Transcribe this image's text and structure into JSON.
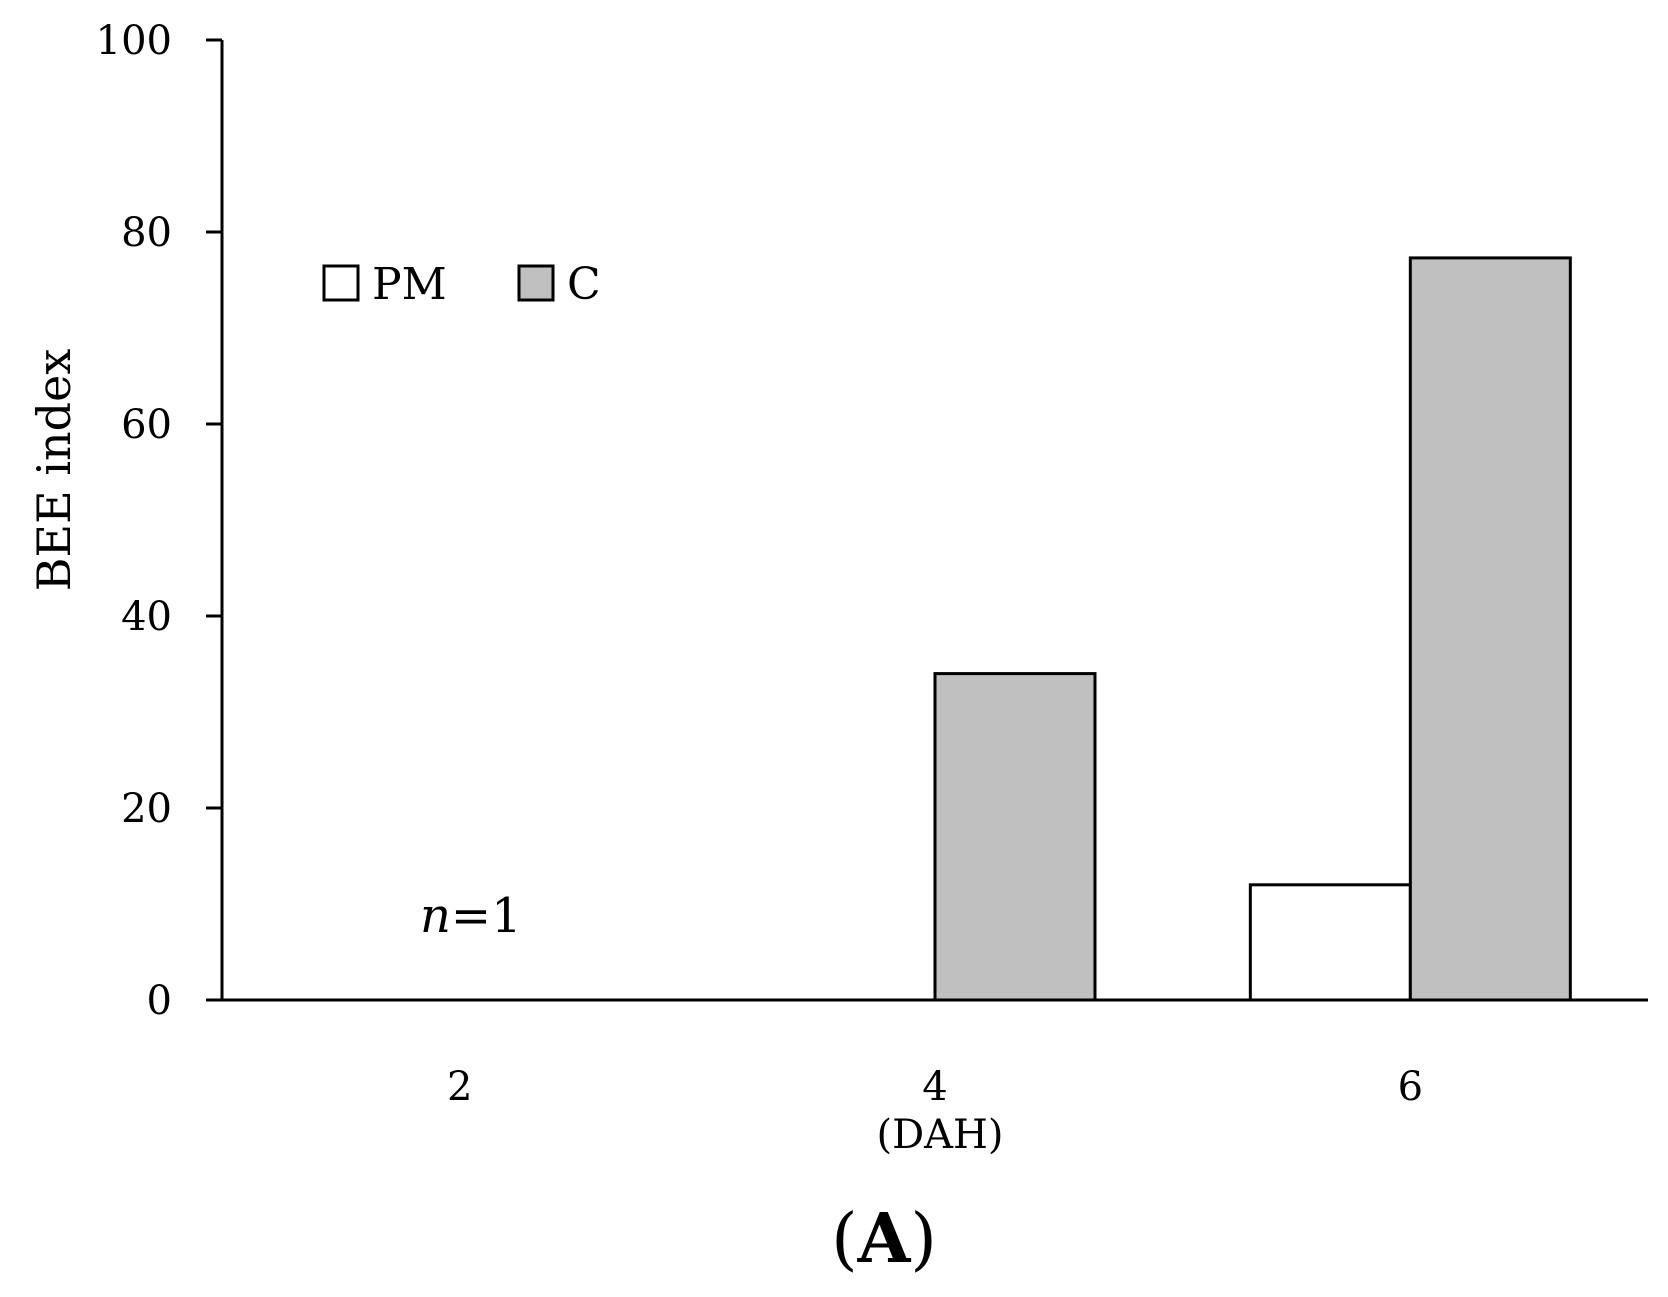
{
  "chart_data": {
    "type": "bar",
    "categories": [
      "2",
      "4",
      "6"
    ],
    "series": [
      {
        "name": "PM",
        "values": [
          0,
          0,
          12
        ],
        "color": "#ffffff"
      },
      {
        "name": "C",
        "values": [
          0,
          34,
          77.3
        ],
        "color": "#c0c0c0"
      }
    ],
    "xlabel": "(DAH)",
    "ylabel": "BEE index",
    "ylim": [
      0,
      100
    ],
    "yticks": [
      0,
      20,
      40,
      60,
      80,
      100
    ],
    "legend_position": "top-left",
    "grid": false,
    "annotation": {
      "italic": "n",
      "rest": "=1"
    },
    "panel_label": {
      "open": "(",
      "letter": "A",
      "close": ")"
    }
  }
}
